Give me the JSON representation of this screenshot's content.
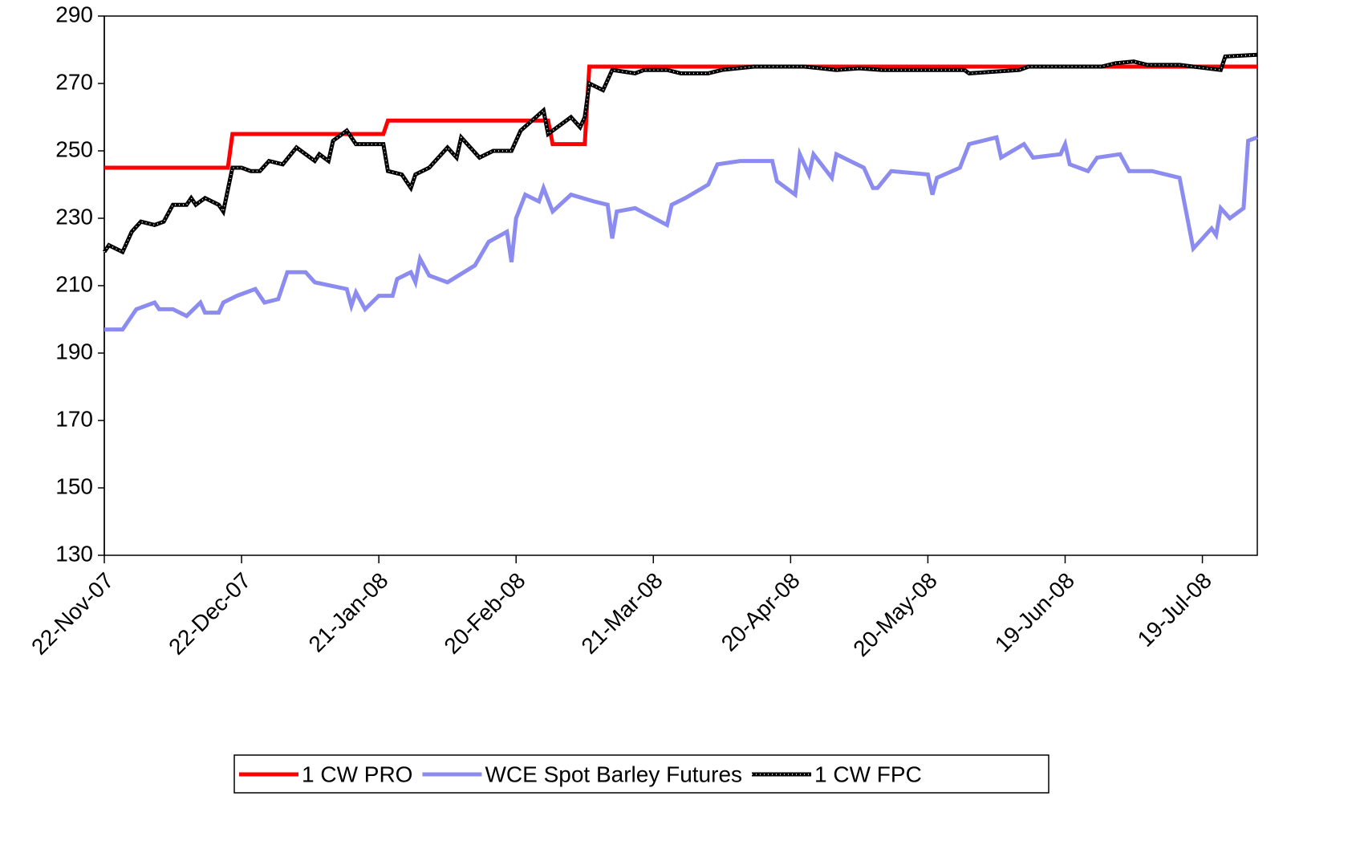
{
  "chart_data": {
    "type": "line",
    "xlim": [
      "2007-11-22",
      "2008-07-31"
    ],
    "xticks": [
      {
        "value": "2007-11-22",
        "label": "22-Nov-07"
      },
      {
        "value": "2007-12-22",
        "label": "22-Dec-07"
      },
      {
        "value": "2008-01-21",
        "label": "21-Jan-08"
      },
      {
        "value": "2008-02-20",
        "label": "20-Feb-08"
      },
      {
        "value": "2008-03-21",
        "label": "21-Mar-08"
      },
      {
        "value": "2008-04-20",
        "label": "20-Apr-08"
      },
      {
        "value": "2008-05-20",
        "label": "20-May-08"
      },
      {
        "value": "2008-06-19",
        "label": "19-Jun-08"
      },
      {
        "value": "2008-07-19",
        "label": "19-Jul-08"
      }
    ],
    "ylim": [
      130,
      290
    ],
    "yticks": [
      130,
      150,
      170,
      190,
      210,
      230,
      250,
      270,
      290
    ],
    "legend": "bottom",
    "series": [
      {
        "name": "1 CW PRO",
        "color": "#ff0000",
        "x": [
          "2007-11-22",
          "2007-12-19",
          "2007-12-20",
          "2008-01-22",
          "2008-01-23",
          "2008-02-27",
          "2008-02-28",
          "2008-03-06",
          "2008-03-07",
          "2008-07-31"
        ],
        "values": [
          245,
          245,
          255,
          255,
          259,
          259,
          252,
          252,
          275,
          275
        ]
      },
      {
        "name": "WCE Spot Barley Futures",
        "color": "#8c8cf0",
        "x": [
          "2007-11-22",
          "2007-11-26",
          "2007-11-29",
          "2007-12-03",
          "2007-12-04",
          "2007-12-07",
          "2007-12-10",
          "2007-12-13",
          "2007-12-14",
          "2007-12-17",
          "2007-12-18",
          "2007-12-21",
          "2007-12-25",
          "2007-12-27",
          "2007-12-30",
          "2008-01-01",
          "2008-01-05",
          "2008-01-07",
          "2008-01-14",
          "2008-01-15",
          "2008-01-16",
          "2008-01-18",
          "2008-01-21",
          "2008-01-24",
          "2008-01-25",
          "2008-01-28",
          "2008-01-29",
          "2008-01-30",
          "2008-02-01",
          "2008-02-05",
          "2008-02-11",
          "2008-02-14",
          "2008-02-18",
          "2008-02-19",
          "2008-02-20",
          "2008-02-22",
          "2008-02-25",
          "2008-02-26",
          "2008-02-28",
          "2008-03-03",
          "2008-03-08",
          "2008-03-11",
          "2008-03-12",
          "2008-03-13",
          "2008-03-17",
          "2008-03-24",
          "2008-03-25",
          "2008-03-28",
          "2008-04-02",
          "2008-04-04",
          "2008-04-09",
          "2008-04-16",
          "2008-04-17",
          "2008-04-21",
          "2008-04-22",
          "2008-04-24",
          "2008-04-25",
          "2008-04-29",
          "2008-04-30",
          "2008-05-06",
          "2008-05-08",
          "2008-05-09",
          "2008-05-12",
          "2008-05-20",
          "2008-05-21",
          "2008-05-22",
          "2008-05-27",
          "2008-05-29",
          "2008-06-04",
          "2008-06-05",
          "2008-06-10",
          "2008-06-12",
          "2008-06-18",
          "2008-06-19",
          "2008-06-20",
          "2008-06-24",
          "2008-06-26",
          "2008-07-01",
          "2008-07-03",
          "2008-07-08",
          "2008-07-14",
          "2008-07-17",
          "2008-07-21",
          "2008-07-22",
          "2008-07-23",
          "2008-07-25",
          "2008-07-28",
          "2008-07-29",
          "2008-07-31"
        ],
        "values": [
          197,
          197,
          203,
          205,
          203,
          203,
          201,
          205,
          202,
          202,
          205,
          207,
          209,
          205,
          206,
          214,
          214,
          211,
          209,
          204,
          208,
          203,
          207,
          207,
          212,
          214,
          211,
          218,
          213,
          211,
          216,
          223,
          226,
          217,
          230,
          237,
          235,
          239,
          232,
          237,
          235,
          234,
          224,
          232,
          233,
          228,
          234,
          236,
          240,
          246,
          247,
          247,
          241,
          237,
          249,
          243,
          249,
          242,
          249,
          245,
          239,
          239,
          244,
          243,
          237,
          242,
          245,
          252,
          254,
          248,
          252,
          248,
          249,
          252,
          246,
          244,
          248,
          249,
          244,
          244,
          242,
          221,
          227,
          225,
          233,
          230,
          233,
          253,
          254
        ]
      },
      {
        "name": "1 CW FPC",
        "color": "#000000",
        "x": [
          "2007-11-22",
          "2007-11-23",
          "2007-11-26",
          "2007-11-28",
          "2007-11-30",
          "2007-12-03",
          "2007-12-05",
          "2007-12-07",
          "2007-12-10",
          "2007-12-11",
          "2007-12-12",
          "2007-12-14",
          "2007-12-17",
          "2007-12-18",
          "2007-12-20",
          "2007-12-22",
          "2007-12-24",
          "2007-12-26",
          "2007-12-28",
          "2007-12-31",
          "2008-01-03",
          "2008-01-07",
          "2008-01-08",
          "2008-01-10",
          "2008-01-11",
          "2008-01-14",
          "2008-01-16",
          "2008-01-22",
          "2008-01-23",
          "2008-01-26",
          "2008-01-28",
          "2008-01-29",
          "2008-02-01",
          "2008-02-05",
          "2008-02-07",
          "2008-02-08",
          "2008-02-12",
          "2008-02-15",
          "2008-02-19",
          "2008-02-20",
          "2008-02-21",
          "2008-02-26",
          "2008-02-27",
          "2008-03-03",
          "2008-03-05",
          "2008-03-06",
          "2008-03-07",
          "2008-03-10",
          "2008-03-12",
          "2008-03-17",
          "2008-03-19",
          "2008-03-24",
          "2008-03-27",
          "2008-04-02",
          "2008-04-05",
          "2008-04-12",
          "2008-04-23",
          "2008-04-30",
          "2008-05-05",
          "2008-05-10",
          "2008-05-19",
          "2008-05-28",
          "2008-05-29",
          "2008-06-09",
          "2008-06-11",
          "2008-06-20",
          "2008-06-27",
          "2008-06-30",
          "2008-07-04",
          "2008-07-07",
          "2008-07-14",
          "2008-07-23",
          "2008-07-24",
          "2008-07-31"
        ],
        "values": [
          220,
          222,
          220,
          226,
          229,
          228,
          229,
          234,
          234,
          236,
          234,
          236,
          234,
          232,
          245,
          245,
          244,
          244,
          247,
          246,
          251,
          247,
          249,
          247,
          253,
          256,
          252,
          252,
          244,
          243,
          239,
          243,
          245,
          251,
          248,
          254,
          248,
          250,
          250,
          253,
          256,
          262,
          255,
          260,
          257,
          260,
          270,
          268,
          274,
          273,
          274,
          274,
          273,
          273,
          274,
          275,
          275,
          274,
          274.5,
          274,
          274,
          274,
          273,
          274,
          275,
          275,
          275,
          276,
          276.5,
          275.5,
          275.5,
          274,
          278,
          278.5
        ]
      }
    ]
  }
}
